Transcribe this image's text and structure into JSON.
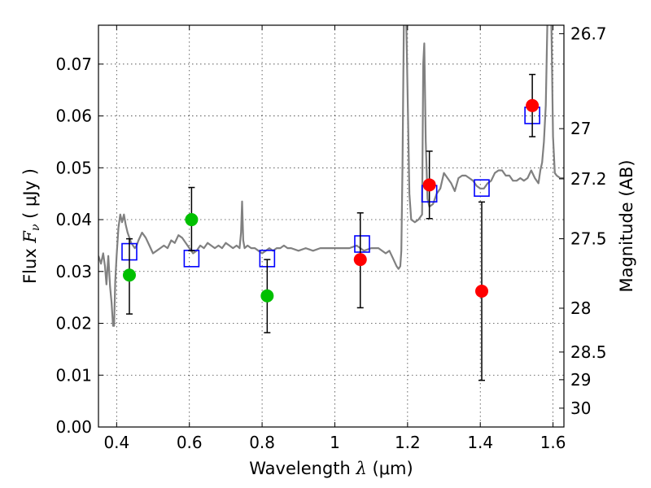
{
  "chart_data": {
    "type": "scatter",
    "xlabel": {
      "prefix": "Wavelength  ",
      "symbol": "λ",
      "unit": " (μm)"
    },
    "ylabel": {
      "prefix": "Flux  ",
      "symbol": "F",
      "subscript": "ν",
      "unit": "  ( μJy )"
    },
    "ylabel_right": "Magnitude (AB)",
    "xlim": [
      0.35,
      1.63
    ],
    "ylim": [
      0.0,
      0.0775
    ],
    "x_ticks": [
      {
        "value": 0.4,
        "label": "0.4"
      },
      {
        "value": 0.6,
        "label": "0.6"
      },
      {
        "value": 0.8,
        "label": "0.8"
      },
      {
        "value": 1.0,
        "label": "1"
      },
      {
        "value": 1.2,
        "label": "1.2"
      },
      {
        "value": 1.4,
        "label": "1.4"
      },
      {
        "value": 1.6,
        "label": "1.6"
      }
    ],
    "y_ticks": [
      {
        "value": 0.0,
        "label": "0.00"
      },
      {
        "value": 0.01,
        "label": "0.01"
      },
      {
        "value": 0.02,
        "label": "0.02"
      },
      {
        "value": 0.03,
        "label": "0.03"
      },
      {
        "value": 0.04,
        "label": "0.04"
      },
      {
        "value": 0.05,
        "label": "0.05"
      },
      {
        "value": 0.06,
        "label": "0.06"
      },
      {
        "value": 0.07,
        "label": "0.07"
      }
    ],
    "mag_ticks": [
      {
        "value": 26.7,
        "label": "26.7"
      },
      {
        "value": 27.0,
        "label": "27"
      },
      {
        "value": 27.2,
        "label": "27.2"
      },
      {
        "value": 27.5,
        "label": "27.5"
      },
      {
        "value": 28.0,
        "label": "28"
      },
      {
        "value": 28.5,
        "label": "28.5"
      },
      {
        "value": 29.0,
        "label": "29"
      },
      {
        "value": 30.0,
        "label": "30"
      }
    ],
    "grid": true,
    "colors": {
      "template": "#808080",
      "model": "#0000ff",
      "detected_green": "#00c000",
      "detected_red": "#ff0000",
      "errorbar": "#000000"
    },
    "template_spectrum": [
      [
        0.35,
        0.033
      ],
      [
        0.357,
        0.0315
      ],
      [
        0.363,
        0.0335
      ],
      [
        0.368,
        0.031
      ],
      [
        0.372,
        0.0275
      ],
      [
        0.377,
        0.033
      ],
      [
        0.382,
        0.027
      ],
      [
        0.386,
        0.024
      ],
      [
        0.39,
        0.0195
      ],
      [
        0.393,
        0.0195
      ],
      [
        0.396,
        0.028
      ],
      [
        0.4,
        0.033
      ],
      [
        0.405,
        0.0385
      ],
      [
        0.41,
        0.041
      ],
      [
        0.415,
        0.0395
      ],
      [
        0.42,
        0.041
      ],
      [
        0.425,
        0.039
      ],
      [
        0.43,
        0.0375
      ],
      [
        0.435,
        0.0365
      ],
      [
        0.44,
        0.0355
      ],
      [
        0.45,
        0.0345
      ],
      [
        0.455,
        0.035
      ],
      [
        0.46,
        0.036
      ],
      [
        0.47,
        0.0375
      ],
      [
        0.48,
        0.0365
      ],
      [
        0.49,
        0.035
      ],
      [
        0.5,
        0.0335
      ],
      [
        0.51,
        0.034
      ],
      [
        0.52,
        0.0345
      ],
      [
        0.53,
        0.035
      ],
      [
        0.54,
        0.0345
      ],
      [
        0.55,
        0.036
      ],
      [
        0.56,
        0.0355
      ],
      [
        0.57,
        0.037
      ],
      [
        0.58,
        0.0365
      ],
      [
        0.59,
        0.0355
      ],
      [
        0.6,
        0.0345
      ],
      [
        0.61,
        0.0335
      ],
      [
        0.62,
        0.034
      ],
      [
        0.63,
        0.035
      ],
      [
        0.64,
        0.0345
      ],
      [
        0.65,
        0.0355
      ],
      [
        0.66,
        0.035
      ],
      [
        0.67,
        0.0345
      ],
      [
        0.68,
        0.035
      ],
      [
        0.69,
        0.0345
      ],
      [
        0.7,
        0.0355
      ],
      [
        0.71,
        0.035
      ],
      [
        0.72,
        0.0345
      ],
      [
        0.73,
        0.035
      ],
      [
        0.738,
        0.0345
      ],
      [
        0.742,
        0.0375
      ],
      [
        0.745,
        0.0435
      ],
      [
        0.748,
        0.036
      ],
      [
        0.752,
        0.0345
      ],
      [
        0.76,
        0.035
      ],
      [
        0.77,
        0.0345
      ],
      [
        0.78,
        0.0345
      ],
      [
        0.79,
        0.034
      ],
      [
        0.8,
        0.0335
      ],
      [
        0.81,
        0.034
      ],
      [
        0.82,
        0.0345
      ],
      [
        0.83,
        0.034
      ],
      [
        0.84,
        0.0345
      ],
      [
        0.85,
        0.0345
      ],
      [
        0.86,
        0.035
      ],
      [
        0.87,
        0.0345
      ],
      [
        0.88,
        0.0345
      ],
      [
        0.9,
        0.034
      ],
      [
        0.92,
        0.0345
      ],
      [
        0.94,
        0.034
      ],
      [
        0.96,
        0.0345
      ],
      [
        0.98,
        0.0345
      ],
      [
        1.0,
        0.0345
      ],
      [
        1.02,
        0.0345
      ],
      [
        1.04,
        0.0345
      ],
      [
        1.06,
        0.035
      ],
      [
        1.08,
        0.034
      ],
      [
        1.1,
        0.0345
      ],
      [
        1.12,
        0.0345
      ],
      [
        1.14,
        0.0335
      ],
      [
        1.15,
        0.034
      ],
      [
        1.16,
        0.0325
      ],
      [
        1.17,
        0.031
      ],
      [
        1.175,
        0.0305
      ],
      [
        1.18,
        0.031
      ],
      [
        1.183,
        0.034
      ],
      [
        1.186,
        0.05
      ],
      [
        1.19,
        0.08
      ],
      [
        1.196,
        0.08
      ],
      [
        1.2,
        0.065
      ],
      [
        1.205,
        0.045
      ],
      [
        1.21,
        0.04
      ],
      [
        1.22,
        0.0395
      ],
      [
        1.23,
        0.04
      ],
      [
        1.24,
        0.041
      ],
      [
        1.243,
        0.07
      ],
      [
        1.246,
        0.074
      ],
      [
        1.25,
        0.055
      ],
      [
        1.255,
        0.044
      ],
      [
        1.26,
        0.0425
      ],
      [
        1.27,
        0.043
      ],
      [
        1.28,
        0.045
      ],
      [
        1.29,
        0.046
      ],
      [
        1.3,
        0.049
      ],
      [
        1.31,
        0.048
      ],
      [
        1.32,
        0.047
      ],
      [
        1.33,
        0.0455
      ],
      [
        1.34,
        0.048
      ],
      [
        1.35,
        0.0485
      ],
      [
        1.36,
        0.0485
      ],
      [
        1.37,
        0.048
      ],
      [
        1.38,
        0.0475
      ],
      [
        1.39,
        0.0465
      ],
      [
        1.4,
        0.046
      ],
      [
        1.41,
        0.046
      ],
      [
        1.42,
        0.047
      ],
      [
        1.43,
        0.0475
      ],
      [
        1.44,
        0.049
      ],
      [
        1.45,
        0.0495
      ],
      [
        1.46,
        0.0495
      ],
      [
        1.47,
        0.0485
      ],
      [
        1.48,
        0.0485
      ],
      [
        1.49,
        0.0475
      ],
      [
        1.5,
        0.0475
      ],
      [
        1.51,
        0.048
      ],
      [
        1.52,
        0.0475
      ],
      [
        1.53,
        0.048
      ],
      [
        1.54,
        0.0495
      ],
      [
        1.55,
        0.048
      ],
      [
        1.56,
        0.047
      ],
      [
        1.565,
        0.0495
      ],
      [
        1.57,
        0.051
      ],
      [
        1.575,
        0.055
      ],
      [
        1.58,
        0.062
      ],
      [
        1.585,
        0.08
      ],
      [
        1.595,
        0.08
      ],
      [
        1.6,
        0.056
      ],
      [
        1.605,
        0.049
      ],
      [
        1.61,
        0.0485
      ],
      [
        1.62,
        0.048
      ],
      [
        1.63,
        0.048
      ]
    ],
    "model_flux": [
      {
        "x": 0.435,
        "y": 0.0338
      },
      {
        "x": 0.606,
        "y": 0.0325
      },
      {
        "x": 0.814,
        "y": 0.0325
      },
      {
        "x": 1.075,
        "y": 0.0353
      },
      {
        "x": 1.26,
        "y": 0.045
      },
      {
        "x": 1.404,
        "y": 0.0461
      },
      {
        "x": 1.543,
        "y": 0.0601
      }
    ],
    "observed_green": [
      {
        "x": 0.435,
        "y": 0.0293,
        "err_low": 0.0218,
        "err_high": 0.0363
      },
      {
        "x": 0.606,
        "y": 0.04,
        "err_low": 0.034,
        "err_high": 0.0462
      },
      {
        "x": 0.814,
        "y": 0.0253,
        "err_low": 0.0182,
        "err_high": 0.0323
      }
    ],
    "observed_red": [
      {
        "x": 1.07,
        "y": 0.0323,
        "err_low": 0.023,
        "err_high": 0.0413
      },
      {
        "x": 1.26,
        "y": 0.0467,
        "err_low": 0.0402,
        "err_high": 0.0532
      },
      {
        "x": 1.404,
        "y": 0.0262,
        "err_low": 0.009,
        "err_high": 0.0434
      },
      {
        "x": 1.543,
        "y": 0.062,
        "err_low": 0.056,
        "err_high": 0.068
      }
    ]
  }
}
